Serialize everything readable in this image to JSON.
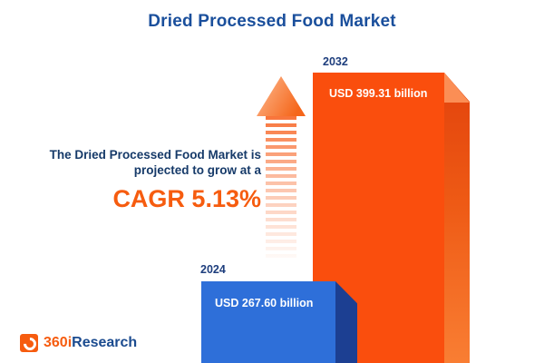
{
  "title": "Dried Processed Food Market",
  "annotation": {
    "line1": "The Dried Processed Food Market is",
    "line2": "projected to grow at a",
    "cagr": "CAGR 5.13%"
  },
  "chart_data": {
    "type": "bar",
    "title": "Dried Processed Food Market",
    "categories": [
      "2024",
      "2032"
    ],
    "values": [
      267.6,
      399.31
    ],
    "value_labels": [
      "USD 267.60 billion",
      "USD 399.31 billion"
    ],
    "unit": "USD billion",
    "cagr_percent": 5.13,
    "legend_position": "none",
    "grid": false,
    "colors": {
      "bar_2024_front": "#2e6fd9",
      "bar_2024_side": "#1c3f92",
      "bar_2032_front": "#fa4e0d",
      "bar_2032_side": "#e2420c",
      "arrow": "#f8743a",
      "title_text": "#1a4f9c",
      "cagr_text": "#f65c0f"
    }
  },
  "logo": {
    "prefix": "360i",
    "suffix": "Research"
  }
}
